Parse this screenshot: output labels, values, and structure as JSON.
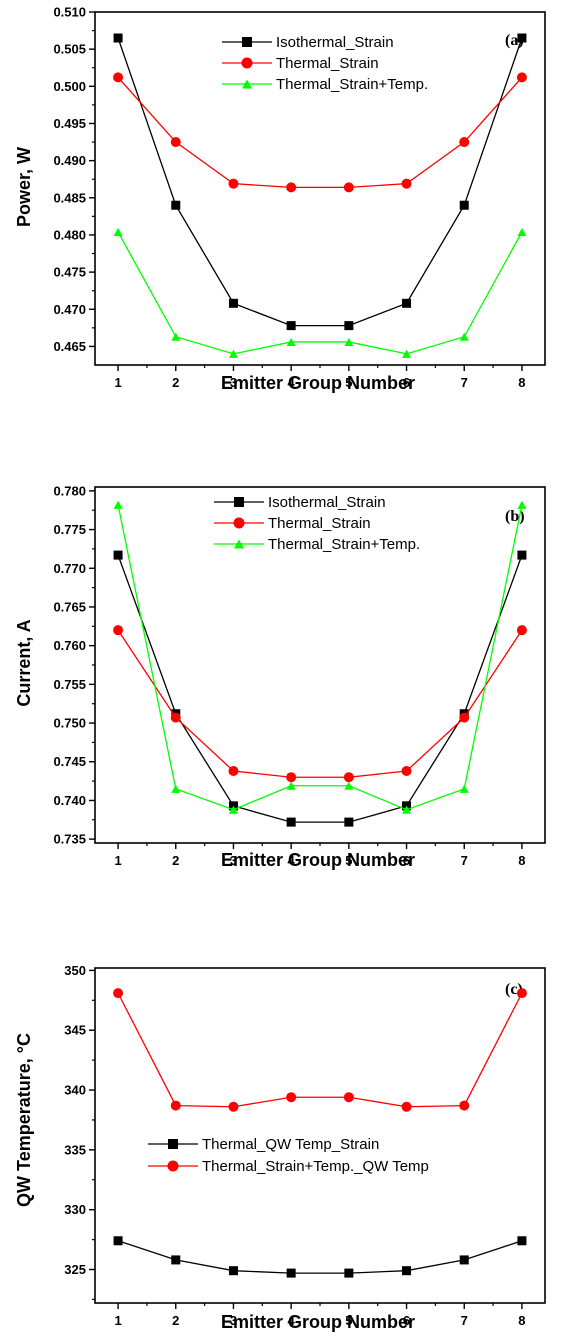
{
  "chart_data": [
    {
      "type": "line",
      "panel_tag": "(a)",
      "xlabel": "Emitter Group Number",
      "ylabel": "Power, W",
      "x": [
        1,
        2,
        3,
        4,
        5,
        6,
        7,
        8
      ],
      "xlim": [
        0.6,
        8.4
      ],
      "ylim": [
        0.4625,
        0.51
      ],
      "xticks": [
        1,
        2,
        3,
        4,
        5,
        6,
        7,
        8
      ],
      "yticks": [
        "0.465",
        "0.470",
        "0.475",
        "0.480",
        "0.485",
        "0.490",
        "0.495",
        "0.500",
        "0.505",
        "0.510"
      ],
      "legend_position": "top-center",
      "series": [
        {
          "name": "Isothermal_Strain",
          "color": "#000000",
          "marker": "square",
          "values": [
            0.5065,
            0.484,
            0.4708,
            0.4678,
            0.4678,
            0.4708,
            0.484,
            0.5065
          ]
        },
        {
          "name": "Thermal_Strain",
          "color": "#ff0000",
          "marker": "circle",
          "values": [
            0.5012,
            0.4925,
            0.4869,
            0.4864,
            0.4864,
            0.4869,
            0.4925,
            0.5012
          ]
        },
        {
          "name": "Thermal_Strain+Temp.",
          "color": "#00ff00",
          "marker": "triangle",
          "values": [
            0.4804,
            0.4663,
            0.464,
            0.4656,
            0.4656,
            0.464,
            0.4663,
            0.4804
          ]
        }
      ]
    },
    {
      "type": "line",
      "panel_tag": "(b)",
      "xlabel": "Emitter Group Number",
      "ylabel": "Current, A",
      "x": [
        1,
        2,
        3,
        4,
        5,
        6,
        7,
        8
      ],
      "xlim": [
        0.6,
        8.4
      ],
      "ylim": [
        0.7345,
        0.7805
      ],
      "xticks": [
        1,
        2,
        3,
        4,
        5,
        6,
        7,
        8
      ],
      "yticks": [
        "0.735",
        "0.740",
        "0.745",
        "0.750",
        "0.755",
        "0.760",
        "0.765",
        "0.770",
        "0.775",
        "0.780"
      ],
      "legend_position": "top-center",
      "series": [
        {
          "name": "Isothermal_Strain",
          "color": "#000000",
          "marker": "square",
          "values": [
            0.7717,
            0.7512,
            0.7393,
            0.7372,
            0.7372,
            0.7393,
            0.7512,
            0.7717
          ]
        },
        {
          "name": "Thermal_Strain",
          "color": "#ff0000",
          "marker": "circle",
          "values": [
            0.762,
            0.7507,
            0.7438,
            0.743,
            0.743,
            0.7438,
            0.7507,
            0.762
          ]
        },
        {
          "name": "Thermal_Strain+Temp.",
          "color": "#00ff00",
          "marker": "triangle",
          "values": [
            0.7782,
            0.7415,
            0.7388,
            0.7419,
            0.7419,
            0.7388,
            0.7415,
            0.7782
          ]
        }
      ]
    },
    {
      "type": "line",
      "panel_tag": "(c)",
      "xlabel": "Emitter Group Number",
      "ylabel": "QW Temperature, °C",
      "x": [
        1,
        2,
        3,
        4,
        5,
        6,
        7,
        8
      ],
      "xlim": [
        0.6,
        8.4
      ],
      "ylim": [
        322.2,
        350.2
      ],
      "xticks": [
        1,
        2,
        3,
        4,
        5,
        6,
        7,
        8
      ],
      "yticks": [
        "325",
        "330",
        "335",
        "340",
        "345",
        "350"
      ],
      "legend_position": "center-left",
      "series": [
        {
          "name": "Thermal_QW Temp_Strain",
          "color": "#000000",
          "marker": "square",
          "values": [
            327.4,
            325.8,
            324.9,
            324.7,
            324.7,
            324.9,
            325.8,
            327.4
          ]
        },
        {
          "name": "Thermal_Strain+Temp._QW Temp",
          "color": "#ff0000",
          "marker": "circle",
          "values": [
            348.1,
            338.7,
            338.6,
            339.4,
            339.4,
            338.6,
            338.7,
            348.1
          ]
        }
      ]
    }
  ]
}
